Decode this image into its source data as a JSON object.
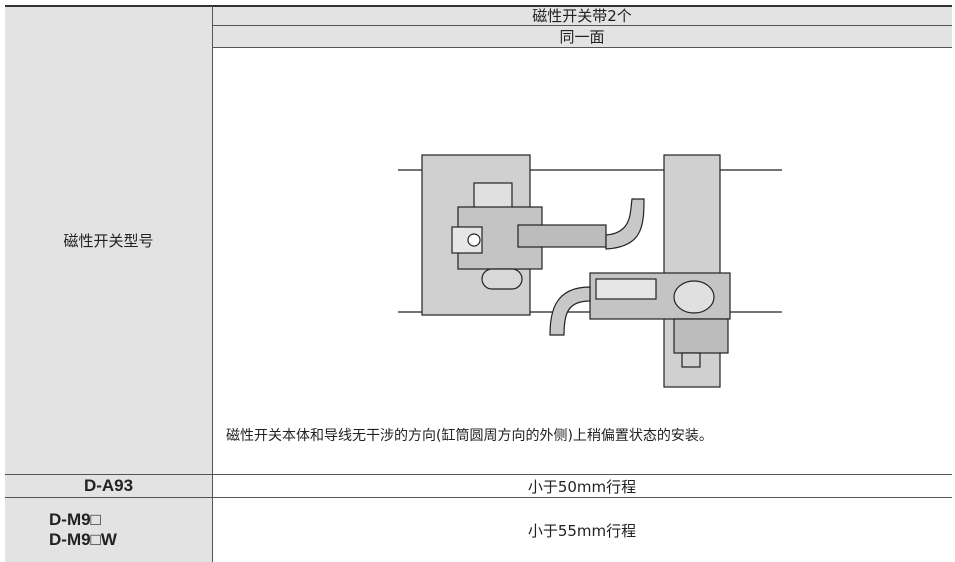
{
  "table": {
    "row_header": "磁性开关型号",
    "headers": [
      "磁性开关带2个",
      "同一面"
    ],
    "note": "磁性开关本体和导线无干涉的方向(缸筒圆周方向的外侧)上稍偏置状态的安装。",
    "rows": [
      {
        "models": [
          "D-A93"
        ],
        "stroke": "小于50mm行程"
      },
      {
        "models": [
          "D-M9□",
          "D-M9□W"
        ],
        "stroke": "小于55mm行程"
      }
    ]
  }
}
